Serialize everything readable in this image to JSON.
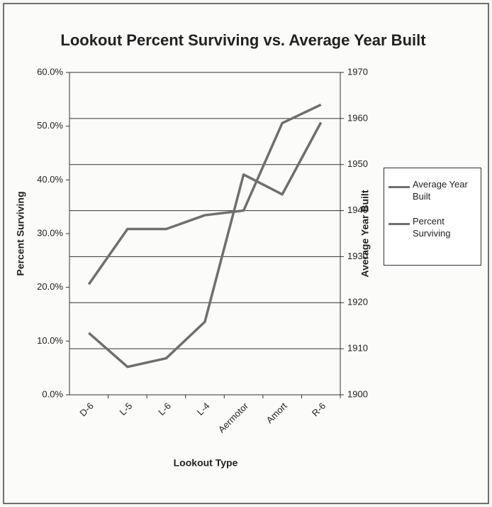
{
  "chart_data": {
    "type": "line",
    "title": "Lookout Percent Surviving vs. Average Year Built",
    "xlabel": "Lookout Type",
    "ylabel": "Percent Surviving",
    "y2label": "Average Year Built",
    "categories": [
      "D-6",
      "L-5",
      "L-6",
      "L-4",
      "Aermotor",
      "Amort",
      "R-6"
    ],
    "series": [
      {
        "name": "Average Year Built",
        "color": "#6f6f6f",
        "axis": "y2",
        "values": [
          1924,
          1936,
          1936,
          1939,
          1940,
          1959,
          1963
        ]
      },
      {
        "name": "Percent Surviving",
        "color": "#6f6f6f",
        "values": [
          11.5,
          5.2,
          6.8,
          13.6,
          41.0,
          37.3,
          50.7
        ]
      }
    ],
    "ylim": [
      0,
      60
    ],
    "yticks": [
      {
        "value": 0,
        "label": "0.0%"
      },
      {
        "value": 10,
        "label": "10.0%"
      },
      {
        "value": 20,
        "label": "20.0%"
      },
      {
        "value": 30,
        "label": "30.0%"
      },
      {
        "value": 40,
        "label": "40.0%"
      },
      {
        "value": 50,
        "label": "50.0%"
      },
      {
        "value": 60,
        "label": "60.0%"
      }
    ],
    "y2lim": [
      1900,
      1970
    ],
    "y2ticks": [
      1900,
      1910,
      1920,
      1930,
      1940,
      1950,
      1960,
      1970
    ],
    "grid": true,
    "legend": "right"
  }
}
